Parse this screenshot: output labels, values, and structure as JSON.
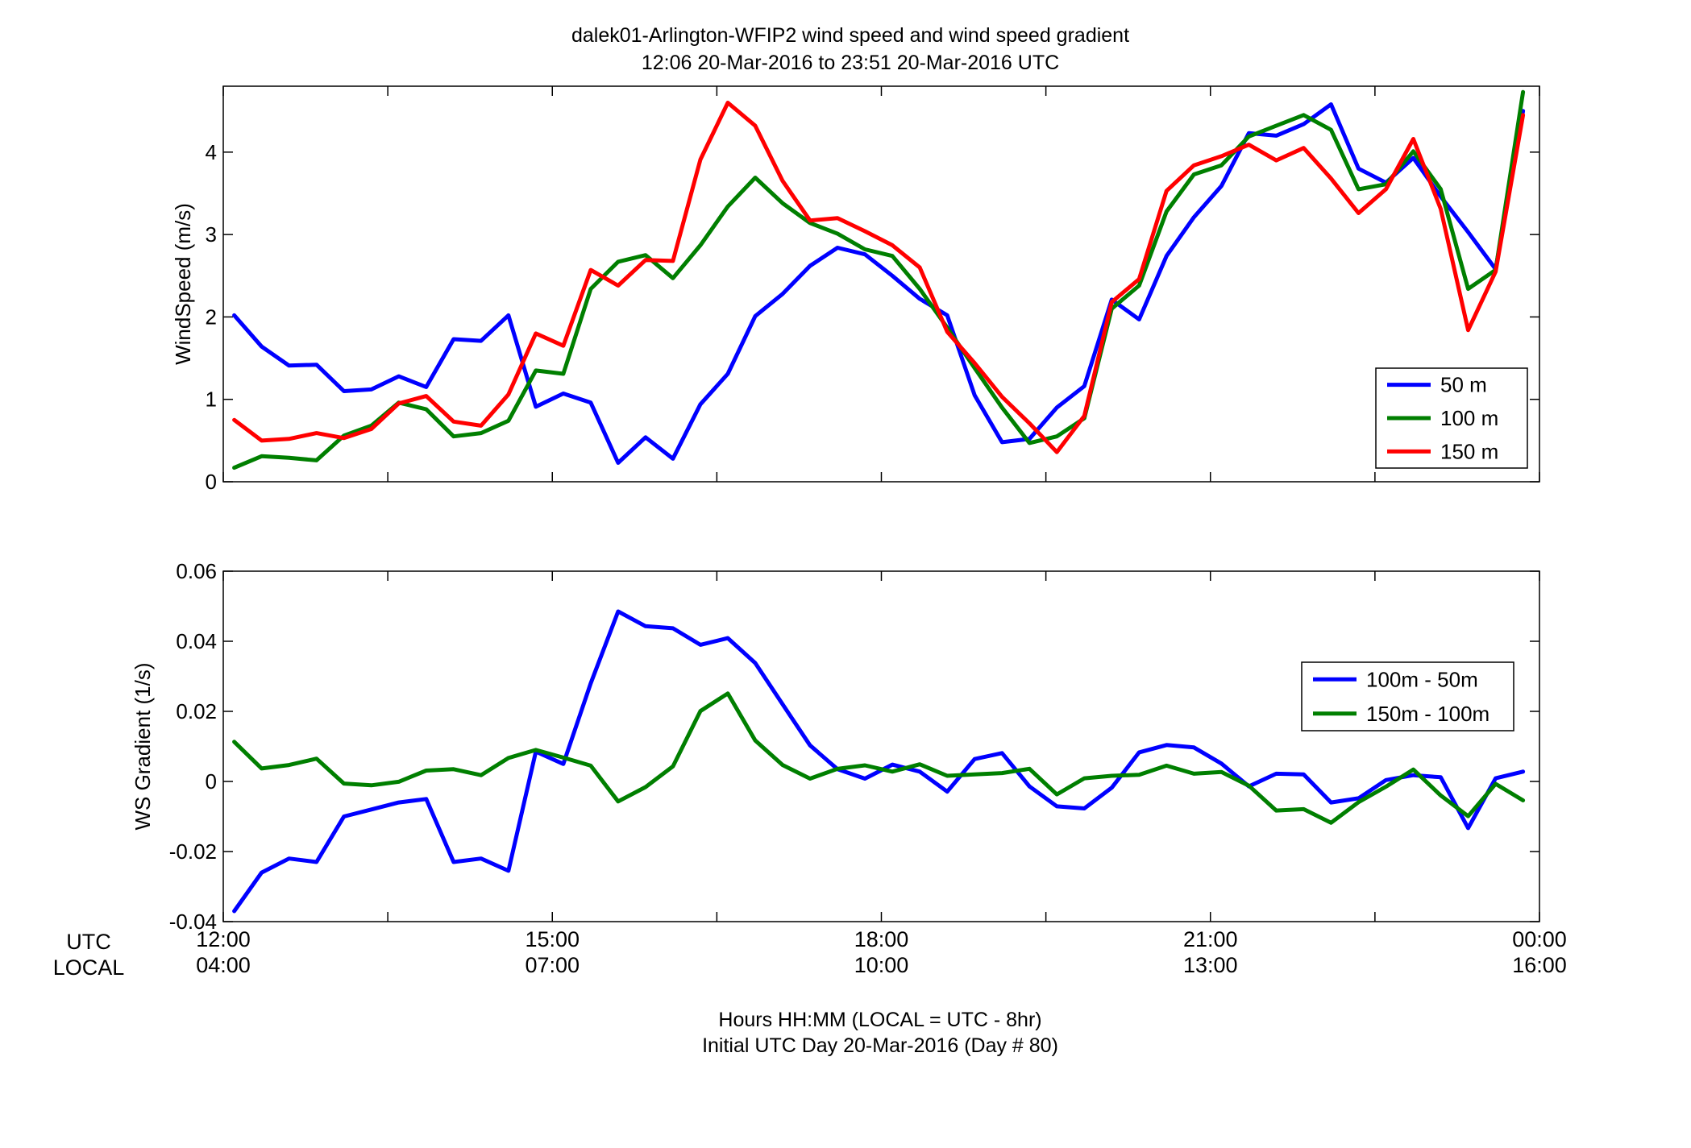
{
  "figure": {
    "title_line1": "dalek01-Arlington-WFIP2  wind speed and wind speed gradient",
    "title_line2": "12:06 20-Mar-2016 to 23:51 20-Mar-2016  UTC",
    "row_label_utc": "UTC",
    "row_label_local": "LOCAL",
    "xlabel_line1": "Hours HH:MM  (LOCAL = UTC - 8hr)",
    "xlabel_line2": "Initial UTC Day 20-Mar-2016 (Day # 80)",
    "utc_ticks": [
      "12:00",
      "15:00",
      "18:00",
      "21:00",
      "00:00"
    ],
    "local_ticks": [
      "04:00",
      "07:00",
      "10:00",
      "13:00",
      "16:00"
    ]
  },
  "chart_data": [
    {
      "type": "line",
      "ylabel": "WindSpeed (m/s)",
      "xlim": [
        12.0,
        24.0
      ],
      "ylim": [
        0,
        4.8
      ],
      "yticks": [
        0,
        1,
        2,
        3,
        4
      ],
      "ytick_labels": [
        "0",
        "1",
        "2",
        "3",
        "4"
      ],
      "xticks": [
        12,
        13.5,
        15,
        16.5,
        18,
        19.5,
        21,
        22.5,
        24
      ],
      "grid": false,
      "legend_position": "bottom-right",
      "x": [
        12.1,
        12.35,
        12.6,
        12.85,
        13.1,
        13.35,
        13.6,
        13.85,
        14.1,
        14.35,
        14.6,
        14.85,
        15.1,
        15.35,
        15.6,
        15.85,
        16.1,
        16.35,
        16.6,
        16.85,
        17.1,
        17.35,
        17.6,
        17.85,
        18.1,
        18.35,
        18.6,
        18.85,
        19.1,
        19.35,
        19.6,
        19.85,
        20.1,
        20.35,
        20.6,
        20.85,
        21.1,
        21.35,
        21.6,
        21.85,
        22.1,
        22.35,
        22.6,
        22.85,
        23.1,
        23.35,
        23.6,
        23.85
      ],
      "series": [
        {
          "name": "50 m",
          "color": "#0000ff",
          "values": [
            2.02,
            1.64,
            1.41,
            1.42,
            1.1,
            1.12,
            1.28,
            1.15,
            1.73,
            1.71,
            2.02,
            0.91,
            1.07,
            0.96,
            0.23,
            0.54,
            0.28,
            0.94,
            1.31,
            2.01,
            2.28,
            2.62,
            2.84,
            2.76,
            2.5,
            2.22,
            2.02,
            1.05,
            0.48,
            0.52,
            0.9,
            1.16,
            2.21,
            1.97,
            2.74,
            3.21,
            3.59,
            4.23,
            4.2,
            4.34,
            4.58,
            3.8,
            3.63,
            3.93,
            3.46,
            3.03,
            2.58,
            4.5
          ]
        },
        {
          "name": "100 m",
          "color": "#007f00",
          "values": [
            0.17,
            0.31,
            0.29,
            0.26,
            0.56,
            0.68,
            0.96,
            0.88,
            0.55,
            0.59,
            0.74,
            1.35,
            1.31,
            2.34,
            2.67,
            2.75,
            2.47,
            2.87,
            3.34,
            3.69,
            3.38,
            3.14,
            3.01,
            2.82,
            2.74,
            2.34,
            1.87,
            1.38,
            0.9,
            0.47,
            0.55,
            0.77,
            2.1,
            2.38,
            3.28,
            3.73,
            3.84,
            4.19,
            4.32,
            4.45,
            4.27,
            3.55,
            3.61,
            4.01,
            3.55,
            2.34,
            2.57,
            4.73
          ]
        },
        {
          "name": "150 m",
          "color": "#ff0000",
          "values": [
            0.75,
            0.5,
            0.52,
            0.59,
            0.53,
            0.64,
            0.95,
            1.04,
            0.73,
            0.68,
            1.06,
            1.8,
            1.65,
            2.57,
            2.38,
            2.69,
            2.68,
            3.91,
            4.6,
            4.32,
            3.65,
            3.17,
            3.2,
            3.04,
            2.87,
            2.6,
            1.82,
            1.44,
            1.03,
            0.71,
            0.36,
            0.8,
            2.18,
            2.46,
            3.53,
            3.84,
            3.95,
            4.09,
            3.9,
            4.05,
            3.68,
            3.26,
            3.55,
            4.16,
            3.31,
            1.84,
            2.55,
            4.45
          ]
        }
      ]
    },
    {
      "type": "line",
      "ylabel": "WS Gradient (1/s)",
      "xlim": [
        12.0,
        24.0
      ],
      "ylim": [
        -0.04,
        0.06
      ],
      "yticks": [
        -0.04,
        -0.02,
        0,
        0.02,
        0.04,
        0.06
      ],
      "ytick_labels": [
        "-0.04",
        "-0.02",
        "0",
        "0.02",
        "0.04",
        "0.06"
      ],
      "xticks": [
        12,
        13.5,
        15,
        16.5,
        18,
        19.5,
        21,
        22.5,
        24
      ],
      "grid": false,
      "legend_position": "top-right",
      "x": [
        12.1,
        12.35,
        12.6,
        12.85,
        13.1,
        13.35,
        13.6,
        13.85,
        14.1,
        14.35,
        14.6,
        14.85,
        15.1,
        15.35,
        15.6,
        15.85,
        16.1,
        16.35,
        16.6,
        16.85,
        17.1,
        17.35,
        17.6,
        17.85,
        18.1,
        18.35,
        18.6,
        18.85,
        19.1,
        19.35,
        19.6,
        19.85,
        20.1,
        20.35,
        20.6,
        20.85,
        21.1,
        21.35,
        21.6,
        21.85,
        22.1,
        22.35,
        22.6,
        22.85,
        23.1,
        23.35,
        23.6,
        23.85
      ],
      "series": [
        {
          "name": "100m - 50m",
          "color": "#0000ff",
          "values": [
            -0.037,
            -0.026,
            -0.022,
            -0.023,
            -0.01,
            -0.008,
            -0.006,
            -0.005,
            -0.023,
            -0.022,
            -0.0255,
            0.0085,
            0.005,
            0.028,
            0.0485,
            0.0443,
            0.0437,
            0.039,
            0.0409,
            0.0338,
            0.022,
            0.0103,
            0.0035,
            0.0008,
            0.0048,
            0.0028,
            -0.0029,
            0.0064,
            0.0081,
            -0.0014,
            -0.0071,
            -0.0077,
            -0.0018,
            0.0083,
            0.0104,
            0.0097,
            0.0051,
            -0.0014,
            0.0022,
            0.002,
            -0.006,
            -0.0048,
            0.0004,
            0.0018,
            0.0012,
            -0.0133,
            0.0009,
            0.0028
          ]
        },
        {
          "name": "150m - 100m",
          "color": "#007f00",
          "values": [
            0.0113,
            0.0037,
            0.0047,
            0.0065,
            -0.0006,
            -0.0011,
            -0.0001,
            0.0031,
            0.0035,
            0.0018,
            0.0067,
            0.009,
            0.0068,
            0.0045,
            -0.0057,
            -0.0016,
            0.0043,
            0.0201,
            0.0251,
            0.0117,
            0.0047,
            0.0008,
            0.0036,
            0.0046,
            0.0028,
            0.0049,
            0.0016,
            0.002,
            0.0024,
            0.0036,
            -0.0037,
            0.0009,
            0.0016,
            0.0019,
            0.0045,
            0.0022,
            0.0027,
            -0.0012,
            -0.0083,
            -0.0079,
            -0.0118,
            -0.0059,
            -0.0015,
            0.0034,
            -0.004,
            -0.0099,
            -0.0007,
            -0.0054
          ]
        }
      ]
    }
  ]
}
